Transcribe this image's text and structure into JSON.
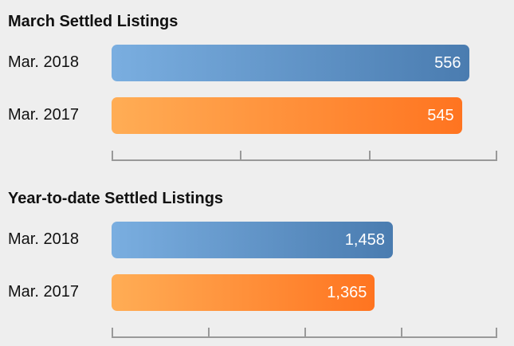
{
  "chart_data": [
    {
      "type": "bar",
      "orientation": "horizontal",
      "title": "March Settled Listings",
      "categories": [
        "Mar. 2018",
        "Mar. 2017"
      ],
      "values": [
        556,
        545
      ],
      "value_labels": [
        "556",
        "545"
      ],
      "colors": [
        "#4a7cb0",
        "#ff7420"
      ],
      "xlim": [
        0,
        600
      ],
      "axis_ticks": [
        0,
        200,
        400,
        600
      ],
      "tick_labels_shown": false,
      "grid": false,
      "legend": "none"
    },
    {
      "type": "bar",
      "orientation": "horizontal",
      "title": "Year-to-date Settled Listings",
      "categories": [
        "Mar. 2018",
        "Mar. 2017"
      ],
      "values": [
        1458,
        1365
      ],
      "value_labels": [
        "1,458",
        "1,365"
      ],
      "colors": [
        "#4a7cb0",
        "#ff7420"
      ],
      "xlim": [
        0,
        2000
      ],
      "axis_ticks": [
        0,
        500,
        1000,
        1500,
        2000
      ],
      "tick_labels_shown": false,
      "grid": false,
      "legend": "none"
    }
  ]
}
